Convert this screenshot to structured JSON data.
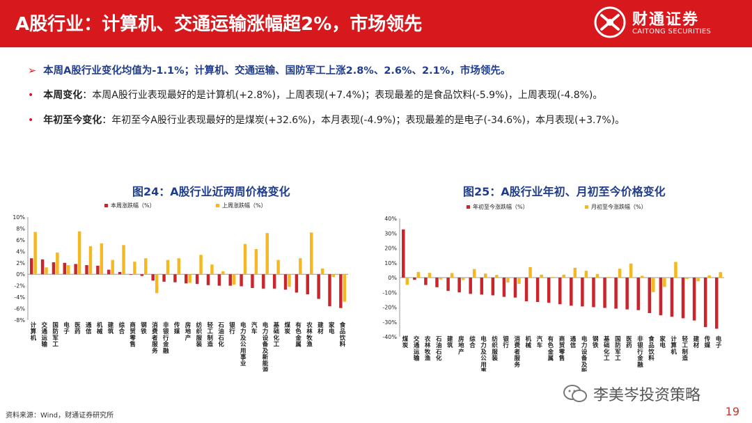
{
  "header": {
    "title": "A股行业：计算机、交通运输涨幅超2%，市场领先",
    "logo_cn": "财通证券",
    "logo_en": "CAITONG SECURITIES"
  },
  "bullets": {
    "main": "本周A股行业变化均值为-1.1%；计算机、交通运输、国防军工上涨2.8%、2.6%、2.1%，市场领先。",
    "weekly_label": "本周变化",
    "weekly_text": "：本周A股行业表现最好的是计算机(+2.8%)，上周表现(+7.4%)；表现最差的是食品饮料(-5.9%)，上周表现(-4.8%)。",
    "ytd_label": "年初至今变化",
    "ytd_text": "：年初至今A股行业表现最好的是煤炭(+32.6%)，本月表现(-4.9%)；表现最差的是电子(-34.6%)，本月表现(+3.7%)。"
  },
  "chart_data": [
    {
      "type": "bar",
      "title": "图24：A股行业近两周价格变化",
      "categories": [
        "计算机",
        "交通运输",
        "国防军工",
        "电子",
        "医药",
        "通信",
        "机械",
        "建筑",
        "综合",
        "商贸零售",
        "钢铁",
        "消费者服务",
        "非银行金融",
        "传媒",
        "房地产",
        "纺织服装",
        "轻工制造",
        "石油石化",
        "银行",
        "电力及公用事业",
        "汽车",
        "电力设备及新能源",
        "基础化工",
        "煤炭",
        "有色金属",
        "农林牧渔",
        "建材",
        "家电",
        "食品饮料"
      ],
      "series": [
        {
          "name": "本周涨跌幅（%）",
          "color": "#c9252b",
          "values": [
            2.8,
            2.6,
            2.1,
            2.0,
            1.8,
            1.6,
            1.5,
            0.8,
            0.4,
            -0.1,
            -0.3,
            -1.1,
            -1.3,
            -1.4,
            -1.6,
            -1.7,
            -1.9,
            -2.0,
            -2.0,
            -2.1,
            -2.4,
            -2.5,
            -2.5,
            -2.7,
            -3.2,
            -3.5,
            -4.3,
            -5.6,
            -5.9
          ]
        },
        {
          "name": "上周涨跌幅（%）",
          "color": "#f5b820",
          "values": [
            7.4,
            1.2,
            3.8,
            1.6,
            7.5,
            4.9,
            5.4,
            2.5,
            5.1,
            2.2,
            2.8,
            -3.3,
            2.5,
            2.8,
            -1.5,
            3.4,
            1.7,
            0.5,
            -1.8,
            5.3,
            4.4,
            7.2,
            2.5,
            -2.2,
            2.8,
            7.3,
            1.0,
            -0.5,
            -4.8
          ]
        }
      ],
      "yticks": [
        "10%",
        "8%",
        "6%",
        "4%",
        "2%",
        "0%",
        "-2%",
        "-4%",
        "-6%",
        "-8%"
      ],
      "ylim": [
        -8,
        10
      ]
    },
    {
      "type": "bar",
      "title": "图25：A股行业年初、月初至今价格变化",
      "categories": [
        "煤炭",
        "交通运输",
        "农林牧渔",
        "石油石化",
        "建筑",
        "房地产",
        "综合",
        "电力及公用事业",
        "纺织服装",
        "银行",
        "消费者服务",
        "机械",
        "汽车",
        "有色金属",
        "商贸零售",
        "通信",
        "电力设备及新能源",
        "钢铁",
        "基础化工",
        "国防军工",
        "医药",
        "非银行金融",
        "食品饮料",
        "家电",
        "计算机",
        "轻工制造",
        "建材",
        "传媒",
        "电子"
      ],
      "series": [
        {
          "name": "年初至今涨跌幅（%）",
          "color": "#c9252b",
          "values": [
            32.6,
            -1.5,
            -5.0,
            -6.5,
            -9.0,
            -10.0,
            -11.0,
            -11.5,
            -12.0,
            -13.0,
            -13.5,
            -16.0,
            -16.5,
            -17.0,
            -18.0,
            -19.0,
            -19.5,
            -20.0,
            -20.5,
            -21.0,
            -21.5,
            -22.0,
            -24.0,
            -25.5,
            -26.5,
            -27.5,
            -29.0,
            -33.5,
            -34.6
          ]
        },
        {
          "name": "月初至今涨跌幅（%）",
          "color": "#f5b820",
          "values": [
            -4.9,
            3.8,
            3.2,
            -1.3,
            3.1,
            -1.6,
            5.8,
            2.7,
            1.8,
            -3.3,
            -4.2,
            7.1,
            2.0,
            0.4,
            2.0,
            6.6,
            4.6,
            2.4,
            0.4,
            6.0,
            9.5,
            1.2,
            -9.8,
            -6.3,
            10.6,
            -1.0,
            -2.5,
            1.5,
            3.7
          ]
        }
      ],
      "yticks": [
        "40%",
        "30%",
        "20%",
        "10%",
        "0%",
        "-10%",
        "-20%",
        "-30%",
        "-40%"
      ],
      "ylim": [
        -40,
        40
      ]
    }
  ],
  "footer": {
    "source": "资料来源：Wind，财通证券研究所",
    "watermark": "李美岑投资策略",
    "page_number": "19"
  }
}
